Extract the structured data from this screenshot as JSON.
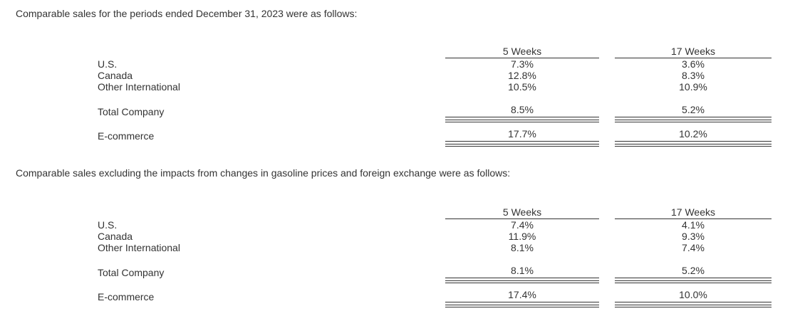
{
  "page": {
    "background": "#ffffff",
    "text_color": "#333333",
    "rule_color": "#333333"
  },
  "intro_1": "Comparable sales for the periods ended December 31, 2023 were as follows:",
  "intro_2": "Comparable sales excluding the impacts from changes in gasoline prices and foreign exchange were as follows:",
  "tables": [
    {
      "name": "comparable-sales",
      "columns": [
        "5 Weeks",
        "17 Weeks"
      ],
      "rows": [
        {
          "label": "U.S.",
          "values": [
            "7.3%",
            "3.6%"
          ]
        },
        {
          "label": "Canada",
          "values": [
            "12.8%",
            "8.3%"
          ]
        },
        {
          "label": "Other International",
          "values": [
            "10.5%",
            "10.9%"
          ]
        }
      ],
      "totals": [
        {
          "label": "Total Company",
          "values": [
            "8.5%",
            "5.2%"
          ]
        },
        {
          "label": "E-commerce",
          "values": [
            "17.7%",
            "10.2%"
          ]
        }
      ]
    },
    {
      "name": "comparable-sales-excluding-gas-fx",
      "columns": [
        "5 Weeks",
        "17 Weeks"
      ],
      "rows": [
        {
          "label": "U.S.",
          "values": [
            "7.4%",
            "4.1%"
          ]
        },
        {
          "label": "Canada",
          "values": [
            "11.9%",
            "9.3%"
          ]
        },
        {
          "label": "Other International",
          "values": [
            "8.1%",
            "7.4%"
          ]
        }
      ],
      "totals": [
        {
          "label": "Total Company",
          "values": [
            "8.1%",
            "5.2%"
          ]
        },
        {
          "label": "E-commerce",
          "values": [
            "17.4%",
            "10.0%"
          ]
        }
      ]
    }
  ]
}
